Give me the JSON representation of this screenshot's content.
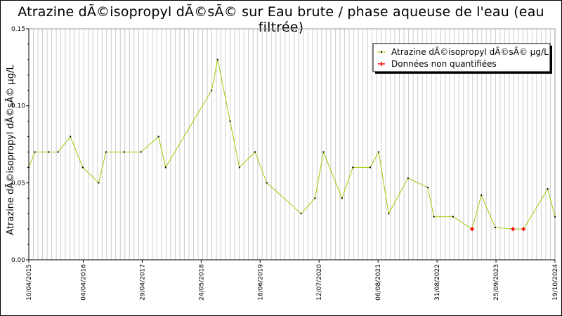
{
  "title": "Atrazine dÃ©isopropyl dÃ©sÃ© sur Eau brute / phase aqueuse de l'eau (eau filtrée)",
  "chart_data": {
    "type": "line",
    "title": "Atrazine dÃ©isopropyl dÃ©sÃ© sur Eau brute / phase aqueuse de l'eau (eau filtrée)",
    "ylabel": "Atrazine dÃ©isopropyl dÃ©sÃ© µg/L",
    "xlabel": "",
    "ylim": [
      0,
      0.15
    ],
    "xlim": [
      "2015-04-10",
      "2024-10-19"
    ],
    "yticks": [
      "0.00",
      "0.05",
      "0.10",
      "0.15"
    ],
    "xticks": [
      "10/04/2015",
      "04/04/2016",
      "29/04/2017",
      "24/05/2018",
      "18/06/2019",
      "12/07/2020",
      "06/08/2021",
      "31/08/2022",
      "25/09/2023",
      "19/10/2024"
    ],
    "grid": "vertical",
    "legend_position": "top-right",
    "colors": {
      "line": "#99cc00",
      "marker": "#000000",
      "unquantified": "#ff0000",
      "grid": "#cccccc"
    },
    "series": [
      {
        "name": "Atrazine dÃ©isopropyl dÃ©sÃ© µg/L",
        "points": [
          [
            "2015-04-10",
            0.06
          ],
          [
            "2015-05-20",
            0.07
          ],
          [
            "2015-08-20",
            0.07
          ],
          [
            "2015-10-20",
            0.07
          ],
          [
            "2016-01-10",
            0.08
          ],
          [
            "2016-04-01",
            0.06
          ],
          [
            "2016-07-15",
            0.05
          ],
          [
            "2016-09-01",
            0.07
          ],
          [
            "2017-01-01",
            0.07
          ],
          [
            "2017-04-20",
            0.07
          ],
          [
            "2017-08-15",
            0.08
          ],
          [
            "2017-10-01",
            0.06
          ],
          [
            "2018-08-01",
            0.11
          ],
          [
            "2018-09-10",
            0.13
          ],
          [
            "2018-12-01",
            0.09
          ],
          [
            "2019-02-01",
            0.06
          ],
          [
            "2019-05-15",
            0.07
          ],
          [
            "2019-08-01",
            0.05
          ],
          [
            "2020-03-15",
            0.03
          ],
          [
            "2020-06-15",
            0.04
          ],
          [
            "2020-08-10",
            0.07
          ],
          [
            "2020-12-10",
            0.04
          ],
          [
            "2021-02-20",
            0.06
          ],
          [
            "2021-06-15",
            0.06
          ],
          [
            "2021-08-10",
            0.07
          ],
          [
            "2021-10-15",
            0.03
          ],
          [
            "2022-02-20",
            0.053
          ],
          [
            "2022-07-01",
            0.047
          ],
          [
            "2022-08-10",
            0.028
          ],
          [
            "2022-12-15",
            0.028
          ],
          [
            "2023-04-20",
            0.02
          ],
          [
            "2023-06-20",
            0.042
          ],
          [
            "2023-09-20",
            0.021
          ],
          [
            "2024-01-15",
            0.02
          ],
          [
            "2024-03-25",
            0.02
          ],
          [
            "2024-09-01",
            0.046
          ],
          [
            "2024-10-19",
            0.028
          ]
        ]
      },
      {
        "name": "Données non quantifiées",
        "points": [
          [
            "2023-04-20",
            0.02
          ],
          [
            "2024-01-15",
            0.02
          ],
          [
            "2024-03-25",
            0.02
          ]
        ]
      }
    ]
  }
}
